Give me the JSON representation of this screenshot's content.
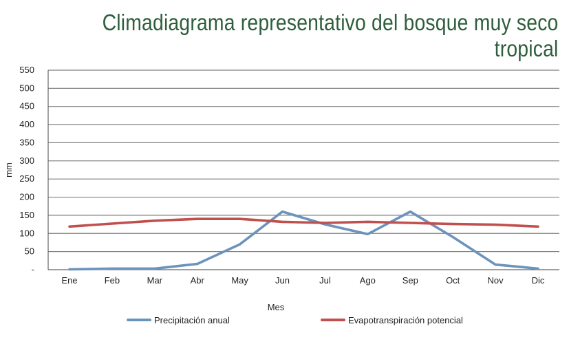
{
  "title": "Climadiagrama representativo del bosque muy seco tropical",
  "chart_data": {
    "type": "line",
    "xlabel": "Mes",
    "ylabel": "mm",
    "categories": [
      "Ene",
      "Feb",
      "Mar",
      "Abr",
      "May",
      "Jun",
      "Jul",
      "Ago",
      "Sep",
      "Oct",
      "Nov",
      "Dic"
    ],
    "y_ticks": [
      "-",
      "50",
      "100",
      "150",
      "200",
      "250",
      "300",
      "350",
      "400",
      "450",
      "500",
      "550"
    ],
    "ylim": [
      0,
      550
    ],
    "grid": true,
    "legend_position": "bottom",
    "series": [
      {
        "name": "Precipitación anual",
        "color": "#6b93bc",
        "values": [
          1,
          3,
          3,
          16,
          70,
          160,
          125,
          98,
          160,
          90,
          14,
          3
        ]
      },
      {
        "name": "Evapotranspiración potencial",
        "color": "#c0504d",
        "values": [
          119,
          127,
          135,
          140,
          140,
          132,
          129,
          132,
          129,
          126,
          124,
          119
        ]
      }
    ]
  }
}
